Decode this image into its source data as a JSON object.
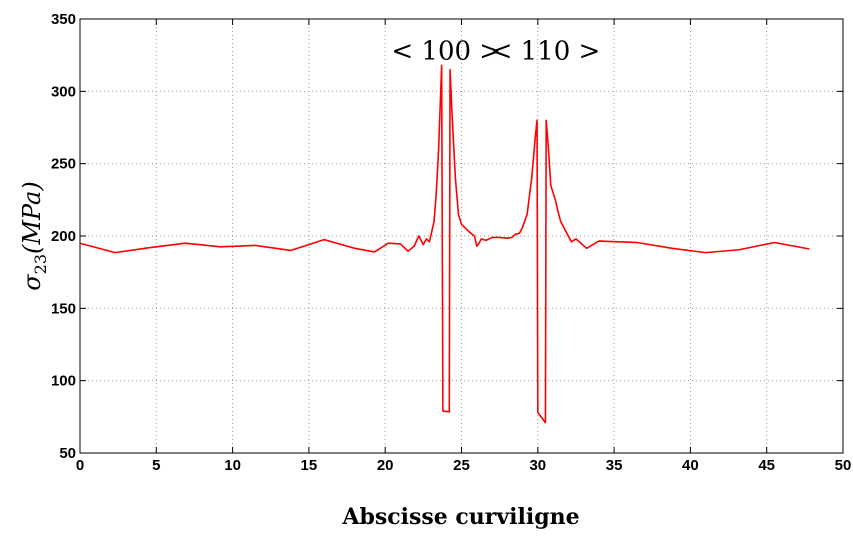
{
  "chart_data": {
    "type": "line",
    "title": "",
    "xlabel": "Abscisse curviligne",
    "ylabel_main": "σ",
    "ylabel_sub": "23",
    "ylabel_rest": "(MPa)",
    "xlim": [
      0,
      50
    ],
    "ylim": [
      50,
      350
    ],
    "x_ticks": [
      0,
      5,
      10,
      15,
      20,
      25,
      30,
      35,
      40,
      45,
      50
    ],
    "y_ticks": [
      50,
      100,
      150,
      200,
      250,
      300,
      350
    ],
    "grid": true,
    "line_color": "#ff0000",
    "annotations": [
      {
        "text": "< 100 >",
        "x": 24.0,
        "y": 322
      },
      {
        "text": "< 110 >",
        "x": 30.5,
        "y": 322
      }
    ],
    "series": [
      {
        "points": [
          [
            0,
            195
          ],
          [
            2.3,
            188.5
          ],
          [
            4.6,
            192
          ],
          [
            6.9,
            195
          ],
          [
            9.2,
            192.5
          ],
          [
            11.5,
            193.5
          ],
          [
            13.8,
            190
          ],
          [
            16,
            197.5
          ],
          [
            18,
            191.5
          ],
          [
            19.3,
            189
          ],
          [
            20.2,
            195
          ],
          [
            21,
            194.5
          ],
          [
            21.5,
            189.5
          ],
          [
            21.9,
            193
          ],
          [
            22.2,
            200
          ],
          [
            22.5,
            194
          ],
          [
            22.7,
            198
          ],
          [
            22.9,
            196
          ],
          [
            23.05,
            203
          ],
          [
            23.2,
            210
          ],
          [
            23.35,
            230
          ],
          [
            23.5,
            260
          ],
          [
            23.7,
            318
          ],
          [
            23.78,
            79
          ],
          [
            24.2,
            78.5
          ],
          [
            24.25,
            315
          ],
          [
            24.4,
            280
          ],
          [
            24.6,
            240
          ],
          [
            24.8,
            215
          ],
          [
            25.0,
            208
          ],
          [
            25.3,
            205
          ],
          [
            25.6,
            202
          ],
          [
            25.85,
            200
          ],
          [
            26.0,
            193
          ],
          [
            26.15,
            195
          ],
          [
            26.3,
            198
          ],
          [
            26.6,
            197
          ],
          [
            27.0,
            199
          ],
          [
            27.5,
            199
          ],
          [
            28.0,
            198.5
          ],
          [
            28.3,
            199
          ],
          [
            28.5,
            201
          ],
          [
            28.8,
            202
          ],
          [
            29.0,
            206
          ],
          [
            29.3,
            215
          ],
          [
            29.6,
            240
          ],
          [
            29.85,
            270
          ],
          [
            29.95,
            280
          ],
          [
            30.0,
            78
          ],
          [
            30.5,
            71
          ],
          [
            30.55,
            280
          ],
          [
            30.7,
            260
          ],
          [
            30.85,
            235
          ],
          [
            31.0,
            230
          ],
          [
            31.15,
            225
          ],
          [
            31.3,
            218
          ],
          [
            31.5,
            210
          ],
          [
            31.75,
            205
          ],
          [
            32.0,
            200
          ],
          [
            32.2,
            196
          ],
          [
            32.5,
            198
          ],
          [
            33.2,
            191.5
          ],
          [
            34.0,
            196.5
          ],
          [
            36.5,
            195.5
          ],
          [
            38.8,
            191.5
          ],
          [
            41.0,
            188.5
          ],
          [
            43.2,
            190.5
          ],
          [
            45.5,
            195.5
          ],
          [
            47.8,
            191
          ]
        ]
      }
    ]
  }
}
